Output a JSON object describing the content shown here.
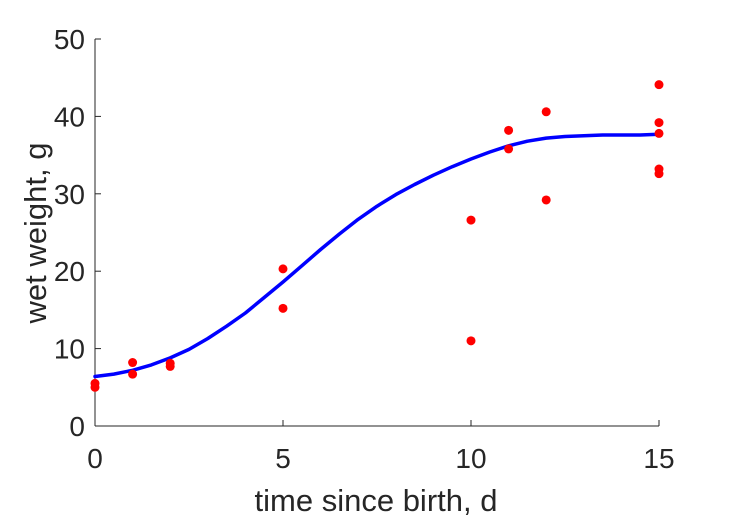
{
  "chart_data": {
    "type": "scatter",
    "xlabel": "time since birth, d",
    "ylabel": "wet weight, g",
    "xlim": [
      0,
      15
    ],
    "ylim": [
      0,
      50
    ],
    "xticks": [
      0,
      5,
      10,
      15
    ],
    "yticks": [
      0,
      10,
      20,
      30,
      40,
      50
    ],
    "grid": false,
    "box": false,
    "series": [
      {
        "kind": "points",
        "color": "#ff0000",
        "points": [
          [
            0,
            5.0
          ],
          [
            0,
            5.5
          ],
          [
            1,
            6.7
          ],
          [
            1,
            8.2
          ],
          [
            2,
            7.7
          ],
          [
            2,
            8.1
          ],
          [
            5,
            15.2
          ],
          [
            5,
            20.3
          ],
          [
            10,
            26.6
          ],
          [
            10,
            11.0
          ],
          [
            11,
            38.2
          ],
          [
            11,
            35.8
          ],
          [
            12,
            40.6
          ],
          [
            12,
            29.2
          ],
          [
            15,
            44.1
          ],
          [
            15,
            39.2
          ],
          [
            15,
            37.8
          ],
          [
            15,
            33.2
          ],
          [
            15,
            32.6
          ]
        ]
      },
      {
        "kind": "line",
        "color": "#0000ff",
        "x": [
          0,
          0.5,
          1,
          1.5,
          2,
          2.5,
          3,
          3.5,
          4,
          4.5,
          5,
          5.5,
          6,
          6.5,
          7,
          7.5,
          8,
          8.5,
          9,
          9.5,
          10,
          10.5,
          11,
          11.5,
          12,
          12.5,
          13,
          13.5,
          14,
          14.5,
          15
        ],
        "y": [
          6.4,
          6.7,
          7.2,
          7.9,
          8.8,
          9.9,
          11.3,
          12.9,
          14.6,
          16.6,
          18.6,
          20.7,
          22.8,
          24.8,
          26.7,
          28.4,
          29.9,
          31.2,
          32.4,
          33.5,
          34.5,
          35.4,
          36.2,
          36.8,
          37.2,
          37.4,
          37.5,
          37.6,
          37.6,
          37.6,
          37.7
        ]
      }
    ]
  }
}
